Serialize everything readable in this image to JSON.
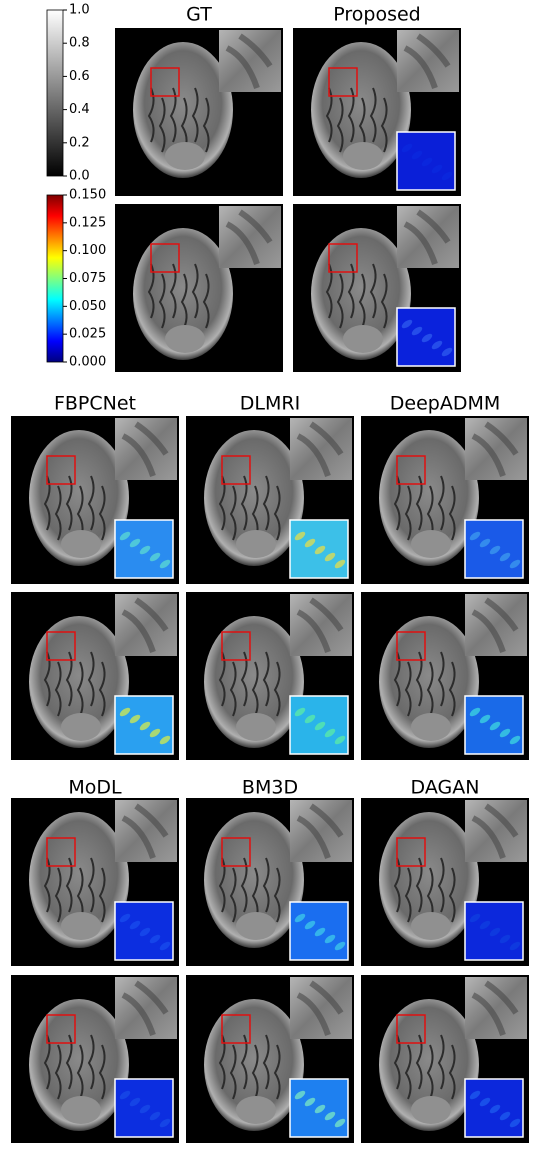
{
  "colorbars": [
    {
      "lim": [
        0,
        1
      ],
      "ticks": [
        {
          "value": 0,
          "label": "0.0"
        },
        0.2,
        0.4,
        0.6,
        0.8,
        {
          "value": 1,
          "label": "1.0"
        }
      ]
    },
    {
      "lim": [
        0,
        0.15
      ],
      "ticks": [
        {
          "value": 0,
          "label": "0.000"
        },
        0.025,
        {
          "value": 0.05,
          "label": "0.050"
        },
        0.075,
        {
          "value": 0.1,
          "label": "0.100"
        },
        0.125,
        {
          "value": 0.15,
          "label": "0.150"
        }
      ]
    }
  ],
  "panels": [
    {
      "title": "GT"
    },
    {
      "title": "Proposed"
    },
    {
      "title": "FBPCNet"
    },
    {
      "title": "DLMRI"
    },
    {
      "title": "DeepADMM"
    },
    {
      "title": "MoDL"
    },
    {
      "title": "BM3D"
    },
    {
      "title": "DAGAN"
    }
  ]
}
